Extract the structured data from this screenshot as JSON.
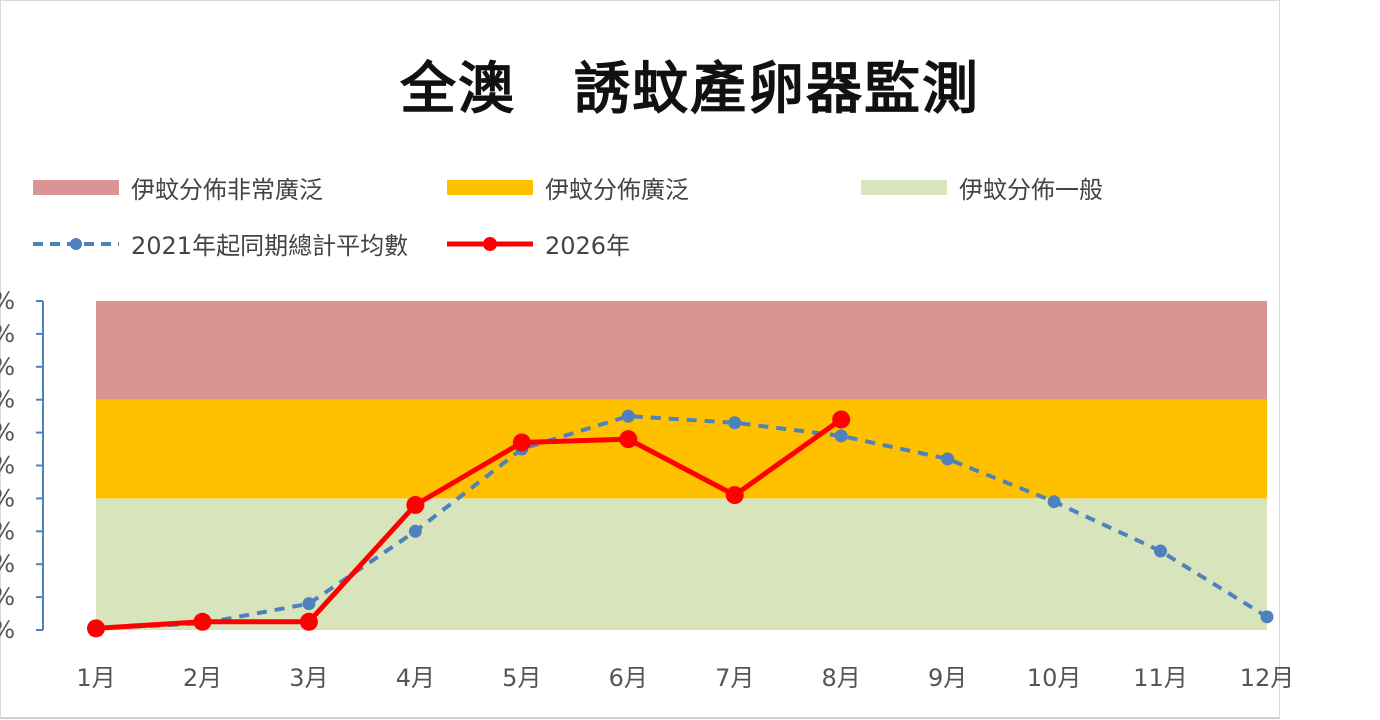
{
  "title": "全澳　誘蚊產卵器監測",
  "legend": {
    "very_widespread": "伊蚊分佈非常廣泛",
    "widespread": "伊蚊分佈廣泛",
    "general": "伊蚊分佈一般",
    "average_series": "2021年起同期總計平均數",
    "current_series": "2026年"
  },
  "colors": {
    "band_very_widespread": "#d99594",
    "band_widespread": "#ffc000",
    "band_general": "#d8e4bc",
    "average_line": "#4f81bd",
    "current_line": "#ff0000",
    "axis": "#4f81bd"
  },
  "chart_data": {
    "type": "line",
    "categories": [
      "1月",
      "2月",
      "3月",
      "4月",
      "5月",
      "6月",
      "7月",
      "8月",
      "9月",
      "10月",
      "11月",
      "12月"
    ],
    "ylim": [
      0,
      100
    ],
    "y_tick_step": 10,
    "y_tick_labels": [
      "%",
      "%",
      "%",
      "%",
      "%",
      "%",
      "%",
      "%",
      "%",
      "%",
      "%"
    ],
    "bands": [
      {
        "name": "伊蚊分佈一般",
        "from": 0,
        "to": 40
      },
      {
        "name": "伊蚊分佈廣泛",
        "from": 40,
        "to": 70
      },
      {
        "name": "伊蚊分佈非常廣泛",
        "from": 70,
        "to": 100
      }
    ],
    "series": [
      {
        "name": "2021年起同期總計平均數",
        "style": "dashed",
        "values": [
          0.5,
          2,
          8,
          30,
          55,
          65,
          63,
          59,
          52,
          39,
          24,
          4
        ]
      },
      {
        "name": "2026年",
        "style": "solid",
        "values": [
          0.5,
          2.5,
          2.5,
          38,
          57,
          58,
          41,
          64,
          null,
          null,
          null,
          null
        ]
      }
    ],
    "grid": false,
    "legend_position": "top"
  }
}
